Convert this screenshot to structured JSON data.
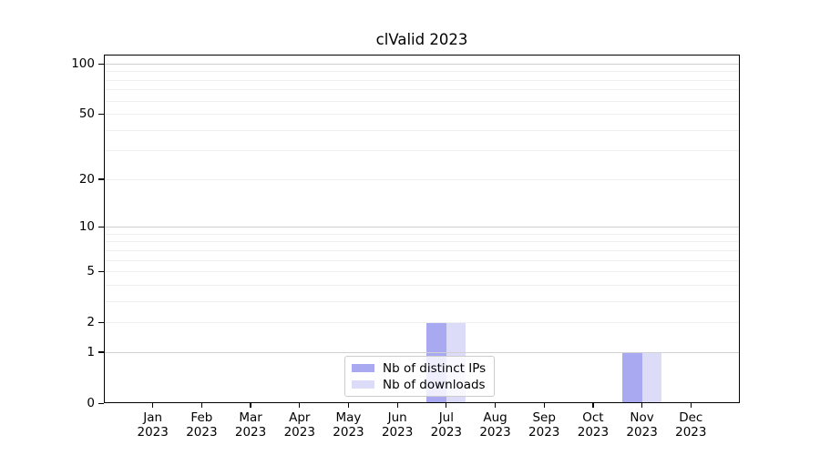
{
  "chart_data": {
    "type": "bar",
    "title": "clValid 2023",
    "x_labels": [
      {
        "month": "Jan",
        "year": "2023"
      },
      {
        "month": "Feb",
        "year": "2023"
      },
      {
        "month": "Mar",
        "year": "2023"
      },
      {
        "month": "Apr",
        "year": "2023"
      },
      {
        "month": "May",
        "year": "2023"
      },
      {
        "month": "Jun",
        "year": "2023"
      },
      {
        "month": "Jul",
        "year": "2023"
      },
      {
        "month": "Aug",
        "year": "2023"
      },
      {
        "month": "Sep",
        "year": "2023"
      },
      {
        "month": "Oct",
        "year": "2023"
      },
      {
        "month": "Nov",
        "year": "2023"
      },
      {
        "month": "Dec",
        "year": "2023"
      }
    ],
    "series": [
      {
        "name": "Nb of distinct IPs",
        "color": "#a9a9f2",
        "values": [
          0,
          0,
          0,
          0,
          0,
          0,
          2,
          0,
          0,
          0,
          1,
          0
        ]
      },
      {
        "name": "Nb of downloads",
        "color": "#dcdcf8",
        "values": [
          0,
          0,
          0,
          0,
          0,
          0,
          2,
          0,
          0,
          0,
          1,
          0
        ]
      }
    ],
    "yscale": "log1p",
    "ylim": [
      0,
      100
    ],
    "y_major_ticks": [
      0,
      1,
      2,
      5,
      10,
      20,
      50,
      100
    ],
    "y_decade_gridlines": [
      1,
      10,
      100
    ],
    "y_minor_gridlines": [
      2,
      3,
      4,
      5,
      6,
      7,
      8,
      9,
      20,
      30,
      40,
      50,
      60,
      70,
      80,
      90
    ],
    "grid": true,
    "legend_position": "lower center",
    "colors": {
      "decade_grid": "#d0d0d0",
      "minor_grid": "#efefef",
      "axis": "#000000",
      "legend_border": "#cccccc"
    }
  }
}
